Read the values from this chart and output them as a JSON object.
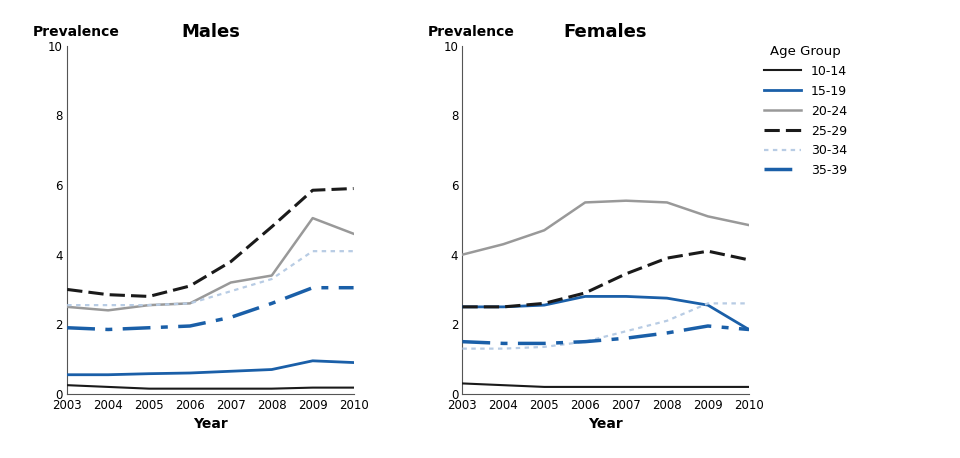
{
  "years": [
    2003,
    2004,
    2005,
    2006,
    2007,
    2008,
    2009,
    2010
  ],
  "males": {
    "10-14": [
      0.25,
      0.2,
      0.15,
      0.15,
      0.15,
      0.15,
      0.18,
      0.18
    ],
    "15-19": [
      0.55,
      0.55,
      0.58,
      0.6,
      0.65,
      0.7,
      0.95,
      0.9
    ],
    "20-24": [
      2.5,
      2.4,
      2.55,
      2.6,
      3.2,
      3.4,
      5.05,
      4.6
    ],
    "25-29": [
      3.0,
      2.85,
      2.8,
      3.1,
      3.8,
      4.8,
      5.85,
      5.9
    ],
    "30-34": [
      2.55,
      2.55,
      2.55,
      2.6,
      2.95,
      3.3,
      4.1,
      4.1
    ],
    "35-39": [
      1.9,
      1.85,
      1.9,
      1.95,
      2.2,
      2.6,
      3.05,
      3.05
    ]
  },
  "females": {
    "10-14": [
      0.3,
      0.25,
      0.2,
      0.2,
      0.2,
      0.2,
      0.2,
      0.2
    ],
    "15-19": [
      2.5,
      2.5,
      2.55,
      2.8,
      2.8,
      2.75,
      2.55,
      1.85
    ],
    "20-24": [
      4.0,
      4.3,
      4.7,
      5.5,
      5.55,
      5.5,
      5.1,
      4.85
    ],
    "25-29": [
      2.5,
      2.5,
      2.6,
      2.9,
      3.45,
      3.9,
      4.1,
      3.85
    ],
    "30-34": [
      1.3,
      1.3,
      1.35,
      1.5,
      1.8,
      2.1,
      2.6,
      2.6
    ],
    "35-39": [
      1.5,
      1.45,
      1.45,
      1.5,
      1.6,
      1.75,
      1.95,
      1.85
    ]
  },
  "age_groups": [
    "10-14",
    "15-19",
    "20-24",
    "25-29",
    "30-34",
    "35-39"
  ],
  "colors": {
    "10-14": "#1a1a1a",
    "15-19": "#1a5fa8",
    "20-24": "#999999",
    "25-29": "#1a1a1a",
    "30-34": "#b8cce4",
    "35-39": "#1a5fa8"
  },
  "linestyles": {
    "10-14": "solid",
    "15-19": "solid",
    "20-24": "solid",
    "25-29": "dashed",
    "30-34": "dotted",
    "35-39": "dashed"
  },
  "linewidths": {
    "10-14": 1.5,
    "15-19": 2.0,
    "20-24": 1.8,
    "25-29": 2.2,
    "30-34": 1.8,
    "35-39": 2.5
  },
  "ylim": [
    0,
    10
  ],
  "yticks": [
    0,
    2,
    4,
    6,
    8,
    10
  ],
  "title_males": "Males",
  "title_females": "Females",
  "xlabel": "Year",
  "ylabel": "Prevalence",
  "legend_title": "Age Group",
  "bg_color": "#ffffff"
}
